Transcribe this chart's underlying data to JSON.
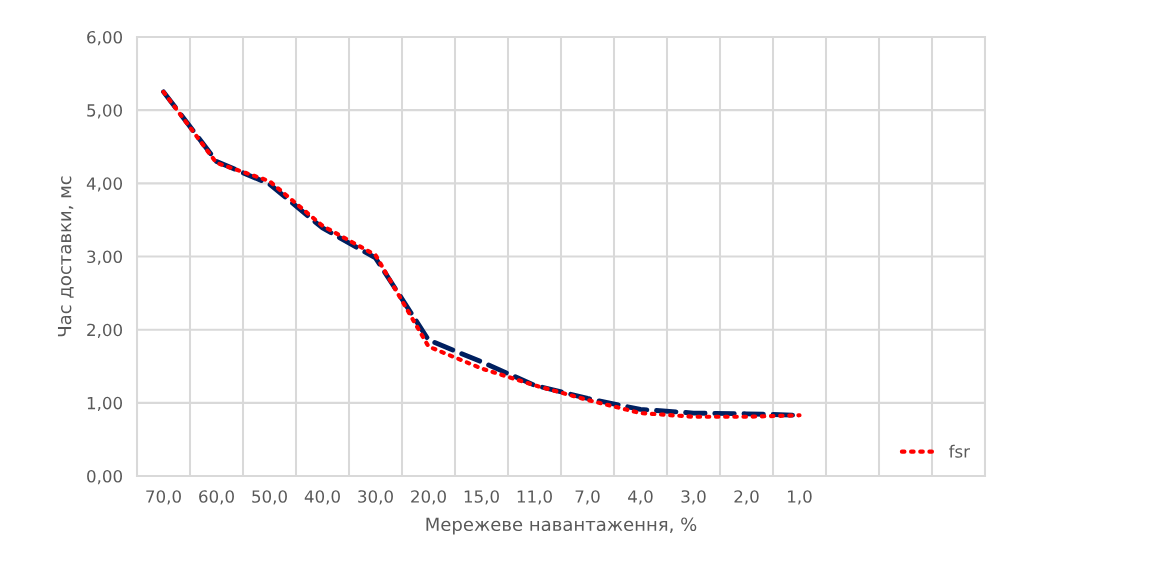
{
  "chart_data": {
    "type": "line",
    "xlabel": "Мережеве навантаження, %",
    "ylabel": "Час доставки, мс",
    "categories": [
      "70,0",
      "60,0",
      "50,0",
      "40,0",
      "30,0",
      "20,0",
      "15,0",
      "11,0",
      "7,0",
      "4,0",
      "3,0",
      "2,0",
      "1,0",
      null,
      null,
      null
    ],
    "series": [
      {
        "color": "#002060",
        "line_style": "dashed",
        "values": [
          5.25,
          4.3,
          3.99,
          3.39,
          2.98,
          1.86,
          1.56,
          1.24,
          1.06,
          0.91,
          0.86,
          0.85,
          0.83,
          null,
          null,
          null
        ]
      },
      {
        "name": "fsr",
        "color": "#ff0000",
        "line_style": "dotted",
        "values": [
          5.25,
          4.28,
          4.03,
          3.42,
          3.02,
          1.77,
          1.47,
          1.24,
          1.04,
          0.86,
          0.81,
          0.81,
          0.83,
          null,
          null,
          null
        ]
      }
    ],
    "ylim": [
      0,
      6
    ],
    "yticks": [
      {
        "value": 0,
        "label": "0,00"
      },
      {
        "value": 1,
        "label": "1,00"
      },
      {
        "value": 2,
        "label": "2,00"
      },
      {
        "value": 3,
        "label": "3,00"
      },
      {
        "value": 4,
        "label": "4,00"
      },
      {
        "value": 5,
        "label": "5,00"
      },
      {
        "value": 6,
        "label": "6,00"
      }
    ],
    "grid": true,
    "legend": "bottom right",
    "marker": "none"
  }
}
